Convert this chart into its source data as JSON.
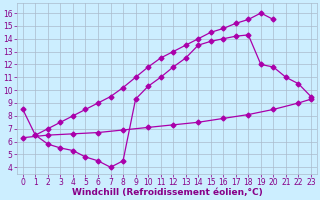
{
  "line1_x": [
    1,
    2,
    3,
    4,
    5,
    6,
    7,
    8,
    9,
    10,
    11,
    12,
    13,
    14,
    15,
    16,
    17,
    18,
    19,
    20
  ],
  "line1_y": [
    6.5,
    7.0,
    7.5,
    8.0,
    8.5,
    9.0,
    9.5,
    10.2,
    11.0,
    11.8,
    12.5,
    13.0,
    13.5,
    14.0,
    14.5,
    14.8,
    15.2,
    15.5,
    16.0,
    15.5
  ],
  "line2_x": [
    0,
    1,
    2,
    3,
    4,
    5,
    6,
    7,
    8,
    9,
    10,
    11,
    12,
    13,
    14,
    15,
    16,
    17,
    18,
    19,
    20,
    21,
    22,
    23
  ],
  "line2_y": [
    8.5,
    6.5,
    5.8,
    5.5,
    5.3,
    4.8,
    4.5,
    4.0,
    4.5,
    9.3,
    10.3,
    11.0,
    11.8,
    12.5,
    13.5,
    13.8,
    14.0,
    14.2,
    14.3,
    12.0,
    11.8,
    11.0,
    10.5,
    9.5
  ],
  "line3_x": [
    0,
    2,
    4,
    6,
    8,
    10,
    12,
    14,
    16,
    18,
    20,
    22,
    23
  ],
  "line3_y": [
    6.3,
    6.5,
    6.6,
    6.7,
    6.9,
    7.1,
    7.3,
    7.5,
    7.8,
    8.1,
    8.5,
    9.0,
    9.3
  ],
  "line_color": "#aa00aa",
  "marker": "D",
  "markersize": 2.5,
  "linewidth": 0.9,
  "bg_color": "#cceeff",
  "grid_color": "#aabbcc",
  "xlabel": "Windchill (Refroidissement éolien,°C)",
  "xlabel_color": "#880088",
  "xlabel_fontsize": 6.5,
  "xlim": [
    -0.5,
    23.5
  ],
  "ylim": [
    3.5,
    16.8
  ],
  "xticks": [
    0,
    1,
    2,
    3,
    4,
    5,
    6,
    7,
    8,
    9,
    10,
    11,
    12,
    13,
    14,
    15,
    16,
    17,
    18,
    19,
    20,
    21,
    22,
    23
  ],
  "yticks": [
    4,
    5,
    6,
    7,
    8,
    9,
    10,
    11,
    12,
    13,
    14,
    15,
    16
  ],
  "tick_fontsize": 5.5,
  "tick_color": "#880088"
}
